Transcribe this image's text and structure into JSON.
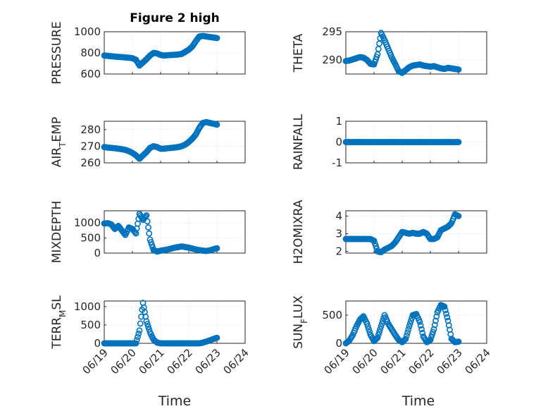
{
  "figure_title": "Figure 2 high",
  "colors": {
    "marker": "#0072BD",
    "axis": "#262626",
    "grid": "#dcdcdc"
  },
  "x_tick_labels": [
    "06/19",
    "06/20",
    "06/21",
    "06/22",
    "06/23",
    "06/24"
  ],
  "x_label": "Time",
  "chart_data": [
    {
      "id": "pressure",
      "type": "scatter",
      "ylabel": "PRESSURE",
      "ylim": [
        600,
        1000
      ],
      "yticks": [
        600,
        800,
        1000
      ],
      "xlim": [
        "06/19",
        "06/24"
      ],
      "grid": true,
      "x": [
        "06/19 00:00",
        "06/19 03:00",
        "06/19 06:00",
        "06/19 09:00",
        "06/19 12:00",
        "06/19 15:00",
        "06/19 18:00",
        "06/19 21:00",
        "06/20 00:00",
        "06/20 03:00",
        "06/20 06:00",
        "06/20 09:00",
        "06/20 12:00",
        "06/20 15:00",
        "06/20 18:00",
        "06/20 21:00",
        "06/21 00:00",
        "06/21 03:00",
        "06/21 06:00",
        "06/21 09:00",
        "06/21 12:00",
        "06/21 15:00",
        "06/21 18:00",
        "06/21 21:00",
        "06/22 00:00",
        "06/22 03:00",
        "06/22 06:00",
        "06/22 09:00",
        "06/22 12:00",
        "06/22 15:00",
        "06/22 18:00",
        "06/22 21:00",
        "06/23 00:00"
      ],
      "y": [
        775,
        772,
        768,
        765,
        762,
        760,
        757,
        754,
        750,
        735,
        680,
        710,
        740,
        775,
        800,
        795,
        780,
        775,
        778,
        780,
        782,
        785,
        790,
        810,
        830,
        860,
        910,
        955,
        960,
        955,
        950,
        945,
        940
      ]
    },
    {
      "id": "theta",
      "type": "scatter",
      "ylabel": "THETA",
      "ylim": [
        287.5,
        295
      ],
      "yticks": [
        290,
        295
      ],
      "xlim": [
        "06/19",
        "06/24"
      ],
      "grid": true,
      "x": [
        "06/19 00:00",
        "06/19 03:00",
        "06/19 06:00",
        "06/19 09:00",
        "06/19 12:00",
        "06/19 15:00",
        "06/19 18:00",
        "06/19 21:00",
        "06/20 00:00",
        "06/20 03:00",
        "06/20 06:00",
        "06/20 09:00",
        "06/20 12:00",
        "06/20 15:00",
        "06/20 18:00",
        "06/20 21:00",
        "06/21 00:00",
        "06/21 03:00",
        "06/21 06:00",
        "06/21 09:00",
        "06/21 12:00",
        "06/21 15:00",
        "06/21 18:00",
        "06/21 21:00",
        "06/22 00:00",
        "06/22 03:00",
        "06/22 06:00",
        "06/22 09:00",
        "06/22 12:00",
        "06/22 15:00",
        "06/22 18:00",
        "06/22 21:00",
        "06/23 00:00"
      ],
      "y": [
        289.8,
        289.9,
        290.1,
        290.3,
        290.5,
        290.4,
        290.0,
        289.3,
        289.2,
        291.0,
        294.8,
        293.5,
        292.0,
        290.5,
        289.3,
        288.0,
        287.7,
        288.2,
        288.7,
        289.0,
        289.1,
        289.2,
        289.0,
        288.9,
        288.8,
        288.9,
        288.7,
        288.5,
        288.4,
        288.6,
        288.5,
        288.4,
        288.3
      ]
    },
    {
      "id": "air_temp",
      "type": "scatter",
      "ylabel": "AIR_TEMP",
      "ylim": [
        260,
        285
      ],
      "yticks": [
        260,
        270,
        280
      ],
      "xlim": [
        "06/19",
        "06/24"
      ],
      "grid": true,
      "x": [
        "06/19 00:00",
        "06/19 03:00",
        "06/19 06:00",
        "06/19 09:00",
        "06/19 12:00",
        "06/19 15:00",
        "06/19 18:00",
        "06/19 21:00",
        "06/20 00:00",
        "06/20 03:00",
        "06/20 06:00",
        "06/20 09:00",
        "06/20 12:00",
        "06/20 15:00",
        "06/20 18:00",
        "06/20 21:00",
        "06/21 00:00",
        "06/21 03:00",
        "06/21 06:00",
        "06/21 09:00",
        "06/21 12:00",
        "06/21 15:00",
        "06/21 18:00",
        "06/21 21:00",
        "06/22 00:00",
        "06/22 03:00",
        "06/22 06:00",
        "06/22 09:00",
        "06/22 12:00",
        "06/22 15:00",
        "06/22 18:00",
        "06/22 21:00",
        "06/23 00:00"
      ],
      "y": [
        269.5,
        269.2,
        269.0,
        268.8,
        268.5,
        268.2,
        267.8,
        267.0,
        266.0,
        264.5,
        262.5,
        264.5,
        266.5,
        269.0,
        270.0,
        269.5,
        268.5,
        268.5,
        268.8,
        269.0,
        269.2,
        269.5,
        270.0,
        271.0,
        272.5,
        274.5,
        277.0,
        281.0,
        284.0,
        284.5,
        284.0,
        283.5,
        283.0
      ]
    },
    {
      "id": "rainfall",
      "type": "scatter",
      "ylabel": "RAINFALL",
      "ylim": [
        -1,
        1
      ],
      "yticks": [
        -1,
        0,
        1
      ],
      "xlim": [
        "06/19",
        "06/24"
      ],
      "grid": true,
      "x": [
        "06/19 00:00",
        "06/19 03:00",
        "06/19 06:00",
        "06/19 09:00",
        "06/19 12:00",
        "06/19 15:00",
        "06/19 18:00",
        "06/19 21:00",
        "06/20 00:00",
        "06/20 03:00",
        "06/20 06:00",
        "06/20 09:00",
        "06/20 12:00",
        "06/20 15:00",
        "06/20 18:00",
        "06/20 21:00",
        "06/21 00:00",
        "06/21 03:00",
        "06/21 06:00",
        "06/21 09:00",
        "06/21 12:00",
        "06/21 15:00",
        "06/21 18:00",
        "06/21 21:00",
        "06/22 00:00",
        "06/22 03:00",
        "06/22 06:00",
        "06/22 09:00",
        "06/22 12:00",
        "06/22 15:00",
        "06/22 18:00",
        "06/22 21:00",
        "06/23 00:00"
      ],
      "y": [
        0,
        0,
        0,
        0,
        0,
        0,
        0,
        0,
        0,
        0,
        0,
        0,
        0,
        0,
        0,
        0,
        0,
        0,
        0,
        0,
        0,
        0,
        0,
        0,
        0,
        0,
        0,
        0,
        0,
        0,
        0,
        0,
        0
      ]
    },
    {
      "id": "mixdepth",
      "type": "scatter",
      "ylabel": "MIXDEPTH",
      "ylim": [
        0,
        1400
      ],
      "yticks": [
        0,
        500,
        1000
      ],
      "xlim": [
        "06/19",
        "06/24"
      ],
      "grid": true,
      "x": [
        "06/19 00:00",
        "06/19 03:00",
        "06/19 06:00",
        "06/19 09:00",
        "06/19 12:00",
        "06/19 15:00",
        "06/19 18:00",
        "06/19 21:00",
        "06/20 00:00",
        "06/20 03:00",
        "06/20 06:00",
        "06/20 09:00",
        "06/20 12:00",
        "06/20 15:00",
        "06/20 18:00",
        "06/20 21:00",
        "06/21 00:00",
        "06/21 03:00",
        "06/21 06:00",
        "06/21 09:00",
        "06/21 12:00",
        "06/21 15:00",
        "06/21 18:00",
        "06/21 21:00",
        "06/22 00:00",
        "06/22 03:00",
        "06/22 06:00",
        "06/22 09:00",
        "06/22 12:00",
        "06/22 15:00",
        "06/22 18:00",
        "06/22 21:00",
        "06/23 00:00"
      ],
      "y": [
        980,
        990,
        950,
        800,
        900,
        750,
        600,
        850,
        800,
        650,
        1300,
        1100,
        1250,
        450,
        100,
        50,
        80,
        100,
        120,
        150,
        180,
        200,
        220,
        200,
        180,
        150,
        120,
        100,
        80,
        70,
        90,
        130,
        160
      ]
    },
    {
      "id": "h2omixra",
      "type": "scatter",
      "ylabel": "H2OMIXRA",
      "ylim": [
        1.9,
        4.3
      ],
      "yticks": [
        2,
        3,
        4
      ],
      "xlim": [
        "06/19",
        "06/24"
      ],
      "grid": true,
      "x": [
        "06/19 00:00",
        "06/19 03:00",
        "06/19 06:00",
        "06/19 09:00",
        "06/19 12:00",
        "06/19 15:00",
        "06/19 18:00",
        "06/19 21:00",
        "06/20 00:00",
        "06/20 03:00",
        "06/20 06:00",
        "06/20 09:00",
        "06/20 12:00",
        "06/20 15:00",
        "06/20 18:00",
        "06/20 21:00",
        "06/21 00:00",
        "06/21 03:00",
        "06/21 06:00",
        "06/21 09:00",
        "06/21 12:00",
        "06/21 15:00",
        "06/21 18:00",
        "06/21 21:00",
        "06/22 00:00",
        "06/22 03:00",
        "06/22 06:00",
        "06/22 09:00",
        "06/22 12:00",
        "06/22 15:00",
        "06/22 18:00",
        "06/22 21:00",
        "06/23 00:00"
      ],
      "y": [
        2.7,
        2.7,
        2.7,
        2.7,
        2.7,
        2.7,
        2.7,
        2.7,
        2.6,
        2.0,
        1.95,
        2.1,
        2.2,
        2.3,
        2.5,
        2.8,
        3.1,
        3.05,
        3.0,
        3.05,
        3.0,
        3.0,
        3.1,
        3.0,
        2.7,
        2.7,
        2.8,
        3.2,
        3.3,
        3.4,
        3.6,
        4.1,
        4.0
      ]
    },
    {
      "id": "terr_msl",
      "type": "scatter",
      "ylabel": "TERR_MSL",
      "ylim": [
        0,
        1150
      ],
      "yticks": [
        0,
        500,
        1000
      ],
      "xlim": [
        "06/19",
        "06/24"
      ],
      "grid": true,
      "x": [
        "06/19 00:00",
        "06/19 03:00",
        "06/19 06:00",
        "06/19 09:00",
        "06/19 12:00",
        "06/19 15:00",
        "06/19 18:00",
        "06/19 21:00",
        "06/20 00:00",
        "06/20 03:00",
        "06/20 06:00",
        "06/20 09:00",
        "06/20 12:00",
        "06/20 15:00",
        "06/20 18:00",
        "06/20 21:00",
        "06/21 00:00",
        "06/21 03:00",
        "06/21 06:00",
        "06/21 09:00",
        "06/21 12:00",
        "06/21 15:00",
        "06/21 18:00",
        "06/21 21:00",
        "06/22 00:00",
        "06/22 03:00",
        "06/22 06:00",
        "06/22 09:00",
        "06/22 12:00",
        "06/22 15:00",
        "06/22 18:00",
        "06/22 21:00",
        "06/23 00:00"
      ],
      "y": [
        0,
        0,
        0,
        0,
        0,
        0,
        0,
        0,
        0,
        0,
        350,
        1100,
        600,
        300,
        100,
        20,
        0,
        0,
        0,
        0,
        0,
        0,
        0,
        0,
        0,
        0,
        0,
        0,
        20,
        50,
        80,
        120,
        150
      ]
    },
    {
      "id": "sun_flux",
      "type": "scatter",
      "ylabel": "SUN_FLUX",
      "ylim": [
        0,
        750
      ],
      "yticks": [
        0,
        500
      ],
      "xlim": [
        "06/19",
        "06/24"
      ],
      "grid": true,
      "x": [
        "06/19 00:00",
        "06/19 03:00",
        "06/19 06:00",
        "06/19 09:00",
        "06/19 12:00",
        "06/19 15:00",
        "06/19 18:00",
        "06/19 21:00",
        "06/20 00:00",
        "06/20 03:00",
        "06/20 06:00",
        "06/20 09:00",
        "06/20 12:00",
        "06/20 15:00",
        "06/20 18:00",
        "06/20 21:00",
        "06/21 00:00",
        "06/21 03:00",
        "06/21 06:00",
        "06/21 09:00",
        "06/21 12:00",
        "06/21 15:00",
        "06/21 18:00",
        "06/21 21:00",
        "06/22 00:00",
        "06/22 03:00",
        "06/22 06:00",
        "06/22 09:00",
        "06/22 12:00",
        "06/22 15:00",
        "06/22 18:00",
        "06/22 21:00",
        "06/23 00:00"
      ],
      "y": [
        0,
        50,
        150,
        300,
        420,
        480,
        350,
        150,
        40,
        100,
        300,
        500,
        350,
        250,
        150,
        60,
        20,
        80,
        300,
        500,
        520,
        380,
        120,
        20,
        60,
        250,
        550,
        680,
        650,
        400,
        80,
        20,
        30
      ]
    }
  ]
}
